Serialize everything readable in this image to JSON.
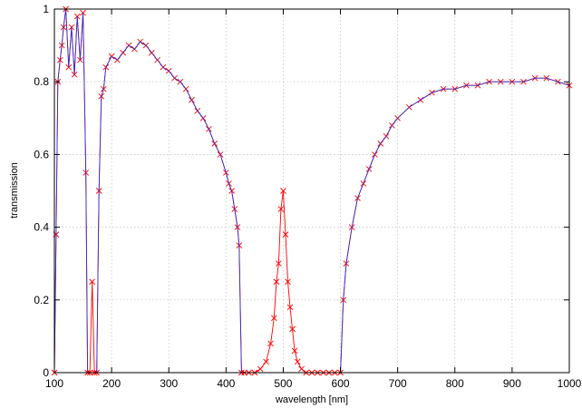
{
  "chart_data": {
    "type": "line",
    "title": "",
    "xlabel": "wavelength [nm]",
    "ylabel": "transmission",
    "xlim": [
      100,
      1000
    ],
    "ylim": [
      0,
      1
    ],
    "x_ticks": [
      100,
      200,
      300,
      400,
      500,
      600,
      700,
      800,
      900,
      1000
    ],
    "y_ticks": [
      0,
      0.2,
      0.4,
      0.6,
      0.8,
      1
    ],
    "y_tick_labels": [
      "0",
      "0.2",
      "0.4",
      "0.6",
      "0.8",
      "1"
    ],
    "grid": true,
    "legend": "none",
    "series": [
      {
        "color": "#ff0000",
        "marker": "x",
        "x": [
          100,
          103,
          106,
          110,
          113,
          116,
          120,
          125,
          130,
          135,
          140,
          145,
          150,
          155,
          158,
          162,
          166,
          170,
          174,
          178,
          182,
          186,
          190,
          200,
          210,
          220,
          230,
          240,
          250,
          260,
          270,
          280,
          290,
          300,
          310,
          320,
          330,
          340,
          350,
          360,
          370,
          380,
          390,
          400,
          405,
          410,
          415,
          420,
          423,
          427,
          432,
          440,
          450,
          460,
          470,
          478,
          484,
          488,
          492,
          496,
          500,
          504,
          508,
          512,
          516,
          520,
          525,
          532,
          540,
          550,
          560,
          570,
          580,
          590,
          600,
          605,
          610,
          620,
          630,
          640,
          650,
          660,
          670,
          680,
          690,
          700,
          720,
          740,
          760,
          780,
          800,
          820,
          840,
          860,
          880,
          900,
          920,
          940,
          960,
          980,
          1000
        ],
        "y": [
          0.0,
          0.38,
          0.8,
          0.86,
          0.9,
          0.95,
          1.0,
          0.84,
          0.95,
          0.82,
          0.98,
          0.86,
          0.99,
          0.55,
          0.0,
          0.0,
          0.25,
          0.0,
          0.0,
          0.5,
          0.76,
          0.78,
          0.84,
          0.87,
          0.86,
          0.88,
          0.9,
          0.89,
          0.91,
          0.9,
          0.88,
          0.86,
          0.84,
          0.83,
          0.81,
          0.8,
          0.78,
          0.75,
          0.72,
          0.7,
          0.67,
          0.63,
          0.6,
          0.55,
          0.52,
          0.5,
          0.45,
          0.4,
          0.35,
          0.0,
          0.0,
          0.0,
          0.0,
          0.01,
          0.03,
          0.08,
          0.15,
          0.25,
          0.3,
          0.45,
          0.5,
          0.38,
          0.25,
          0.18,
          0.12,
          0.06,
          0.03,
          0.01,
          0.0,
          0.0,
          0.0,
          0.0,
          0.0,
          0.0,
          0.0,
          0.2,
          0.3,
          0.4,
          0.48,
          0.52,
          0.56,
          0.6,
          0.63,
          0.65,
          0.68,
          0.7,
          0.73,
          0.75,
          0.77,
          0.78,
          0.78,
          0.79,
          0.79,
          0.8,
          0.8,
          0.8,
          0.8,
          0.81,
          0.81,
          0.8,
          0.79
        ]
      },
      {
        "color": "#3333cc",
        "marker": "none",
        "x": [
          100,
          103,
          106,
          110,
          113,
          116,
          120,
          125,
          130,
          135,
          140,
          145,
          150,
          155,
          158,
          162,
          166,
          170,
          174,
          178,
          182,
          186,
          190,
          200,
          210,
          220,
          230,
          240,
          250,
          260,
          270,
          280,
          290,
          300,
          310,
          320,
          330,
          340,
          350,
          360,
          370,
          380,
          390,
          400,
          405,
          410,
          415,
          420,
          423,
          427,
          432,
          600,
          605,
          610,
          620,
          630,
          640,
          650,
          660,
          670,
          680,
          690,
          700,
          720,
          740,
          760,
          780,
          800,
          820,
          840,
          860,
          880,
          900,
          920,
          940,
          960,
          980,
          1000
        ],
        "y": [
          0.0,
          0.38,
          0.8,
          0.86,
          0.9,
          0.95,
          1.0,
          0.84,
          0.95,
          0.82,
          0.98,
          0.86,
          0.99,
          0.55,
          0.0,
          0.0,
          0.0,
          0.0,
          0.0,
          0.5,
          0.76,
          0.78,
          0.84,
          0.87,
          0.86,
          0.88,
          0.9,
          0.89,
          0.91,
          0.9,
          0.88,
          0.86,
          0.84,
          0.83,
          0.81,
          0.8,
          0.78,
          0.75,
          0.72,
          0.7,
          0.67,
          0.63,
          0.6,
          0.55,
          0.52,
          0.5,
          0.45,
          0.4,
          0.35,
          0.0,
          0.0,
          0.0,
          0.2,
          0.3,
          0.4,
          0.48,
          0.52,
          0.56,
          0.6,
          0.63,
          0.65,
          0.68,
          0.7,
          0.73,
          0.75,
          0.77,
          0.78,
          0.78,
          0.79,
          0.79,
          0.8,
          0.8,
          0.8,
          0.8,
          0.81,
          0.81,
          0.8,
          0.79
        ]
      }
    ]
  }
}
